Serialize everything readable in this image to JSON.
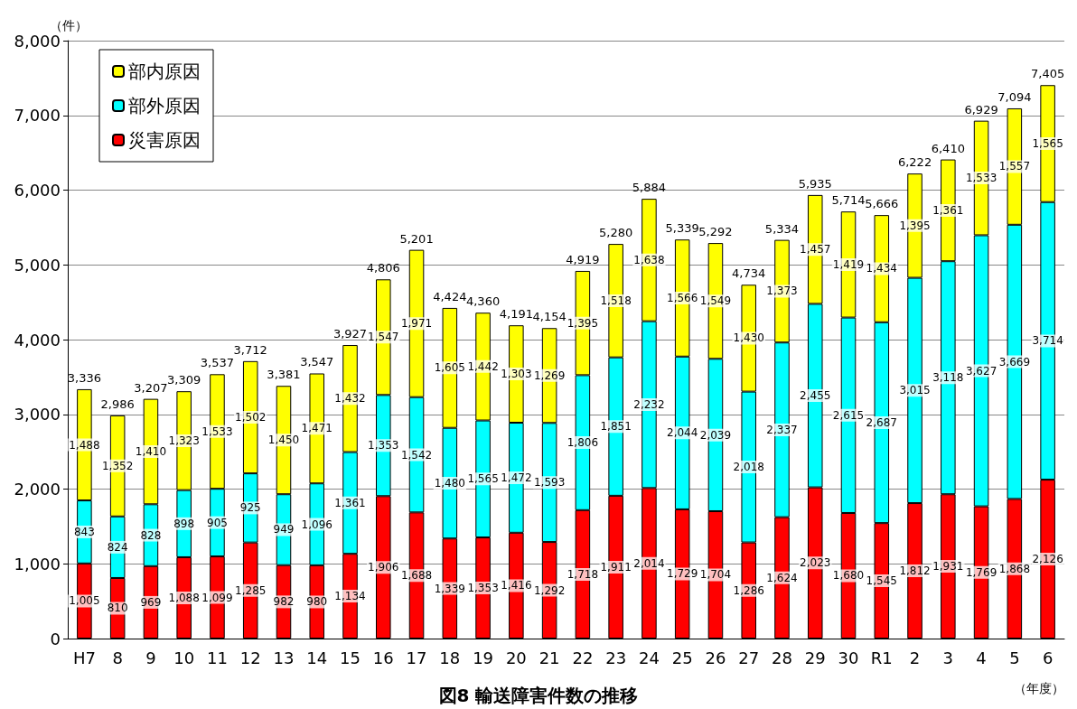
{
  "chart_data": {
    "type": "bar",
    "title": "図8 輸送障害件数の推移",
    "ylabel": "（件）",
    "xlabel": "（年度）",
    "categories": [
      "H7",
      "8",
      "9",
      "10",
      "11",
      "12",
      "13",
      "14",
      "15",
      "16",
      "17",
      "18",
      "19",
      "20",
      "21",
      "22",
      "23",
      "24",
      "25",
      "26",
      "27",
      "28",
      "29",
      "30",
      "R1",
      "2",
      "3",
      "4",
      "5",
      "6"
    ],
    "stacked": true,
    "grid": "y",
    "legend": "top left",
    "ylim": [
      0,
      8000
    ],
    "yticks": [
      0,
      {
        "value": 1000,
        "label": "1,000"
      },
      {
        "value": 2000,
        "label": "2,000"
      },
      {
        "value": 3000,
        "label": "3,000"
      },
      {
        "value": 4000,
        "label": "4,000"
      },
      {
        "value": 5000,
        "label": "5,000"
      },
      {
        "value": 6000,
        "label": "6,000"
      },
      {
        "value": 7000,
        "label": "7,000"
      },
      {
        "value": 8000,
        "label": "8,000"
      }
    ],
    "series": [
      {
        "name": "災害原因",
        "color": "#ff0000",
        "values": [
          1005,
          810,
          969,
          1088,
          1099,
          1285,
          982,
          980,
          1134,
          1906,
          1688,
          1339,
          1353,
          1416,
          1292,
          1718,
          1911,
          2014,
          1729,
          1704,
          1286,
          1624,
          2023,
          1680,
          1545,
          1812,
          1931,
          1769,
          1868,
          2126
        ],
        "value_labels": [
          "1,005",
          "810",
          "969",
          "1,088",
          "1,099",
          "1,285",
          "982",
          "980",
          "1,134",
          "1,906",
          "1,688",
          "1,339",
          "1,353",
          "1,416",
          "1,292",
          "1,718",
          "1,911",
          "2,014",
          "1,729",
          "1,704",
          "1,286",
          "1,624",
          "2,023",
          "1,680",
          "1,545",
          "1,812",
          "1,931",
          "1,769",
          "1,868",
          "2,126"
        ]
      },
      {
        "name": "部外原因",
        "color": "#00ffff",
        "values": [
          843,
          824,
          828,
          898,
          905,
          925,
          949,
          1096,
          1361,
          1353,
          1542,
          1480,
          1565,
          1472,
          1593,
          1806,
          1851,
          2232,
          2044,
          2039,
          2018,
          2337,
          2455,
          2615,
          2687,
          3015,
          3118,
          3627,
          3669,
          3714
        ],
        "value_labels": [
          "843",
          "824",
          "828",
          "898",
          "905",
          "925",
          "949",
          "1,096",
          "1,361",
          "1,353",
          "1,542",
          "1,480",
          "1,565",
          "1,472",
          "1,593",
          "1,806",
          "1,851",
          "2,232",
          "2,044",
          "2,039",
          "2,018",
          "2,337",
          "2,455",
          "2,615",
          "2,687",
          "3,015",
          "3,118",
          "3,627",
          "3,669",
          "3,714"
        ]
      },
      {
        "name": "部内原因",
        "color": "#ffff00",
        "values": [
          1488,
          1352,
          1410,
          1323,
          1533,
          1502,
          1450,
          1471,
          1432,
          1547,
          1971,
          1605,
          1442,
          1303,
          1269,
          1395,
          1518,
          1638,
          1566,
          1549,
          1430,
          1373,
          1457,
          1419,
          1434,
          1395,
          1361,
          1533,
          1557,
          1565
        ],
        "value_labels": [
          "1,488",
          "1,352",
          "1,410",
          "1,323",
          "1,533",
          "1,502",
          "1,450",
          "1,471",
          "1,432",
          "1,547",
          "1,971",
          "1,605",
          "1,442",
          "1,303",
          "1,269",
          "1,395",
          "1,518",
          "1,638",
          "1,566",
          "1,549",
          "1,430",
          "1,373",
          "1,457",
          "1,419",
          "1,434",
          "1,395",
          "1,361",
          "1,533",
          "1,557",
          "1,565"
        ]
      }
    ],
    "totals": [
      "3,336",
      "2,986",
      "3,207",
      "3,309",
      "3,537",
      "3,712",
      "3,381",
      "3,547",
      "3,927",
      "4,806",
      "5,201",
      "4,424",
      "4,360",
      "4,191",
      "4,154",
      "4,919",
      "5,280",
      "5,884",
      "5,339",
      "5,292",
      "4,734",
      "5,334",
      "5,935",
      "5,714",
      "5,666",
      "6,222",
      "6,410",
      "6,929",
      "7,094",
      "7,405"
    ]
  }
}
